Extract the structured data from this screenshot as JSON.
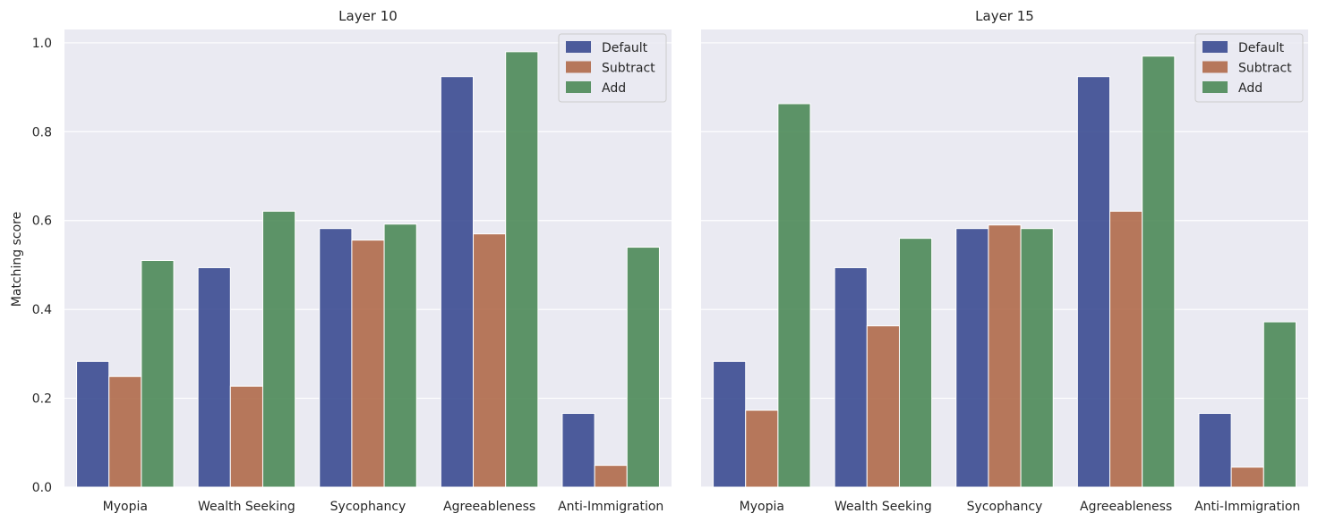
{
  "chart_data": [
    {
      "type": "bar",
      "title": "Layer 10",
      "xlabel": "",
      "ylabel": "Matching score",
      "ylim": [
        0,
        1.03
      ],
      "yticks": [
        "0.0",
        "0.2",
        "0.4",
        "0.6",
        "0.8",
        "1.0"
      ],
      "categories": [
        "Myopia",
        "Wealth Seeking",
        "Sycophancy",
        "Agreeableness",
        "Anti-Immigration"
      ],
      "series": [
        {
          "name": "Default",
          "values": [
            0.283,
            0.494,
            0.582,
            0.924,
            0.166
          ]
        },
        {
          "name": "Subtract",
          "values": [
            0.249,
            0.227,
            0.556,
            0.57,
            0.049
          ]
        },
        {
          "name": "Add",
          "values": [
            0.51,
            0.621,
            0.592,
            0.98,
            0.54
          ]
        }
      ],
      "grid": true,
      "legend_position": "top-right"
    },
    {
      "type": "bar",
      "title": "Layer 15",
      "xlabel": "",
      "ylabel": "",
      "ylim": [
        0,
        1.03
      ],
      "yticks": [],
      "categories": [
        "Myopia",
        "Wealth Seeking",
        "Sycophancy",
        "Agreeableness",
        "Anti-Immigration"
      ],
      "series": [
        {
          "name": "Default",
          "values": [
            0.283,
            0.494,
            0.582,
            0.924,
            0.166
          ]
        },
        {
          "name": "Subtract",
          "values": [
            0.173,
            0.363,
            0.59,
            0.621,
            0.045
          ]
        },
        {
          "name": "Add",
          "values": [
            0.863,
            0.56,
            0.582,
            0.97,
            0.372
          ]
        }
      ],
      "grid": true,
      "legend_position": "top-right"
    }
  ],
  "colors": {
    "Default": "#3b4b91",
    "Subtract": "#b06a4a",
    "Add": "#4d8a58",
    "background": "#eaeaf2",
    "grid": "#ffffff"
  }
}
